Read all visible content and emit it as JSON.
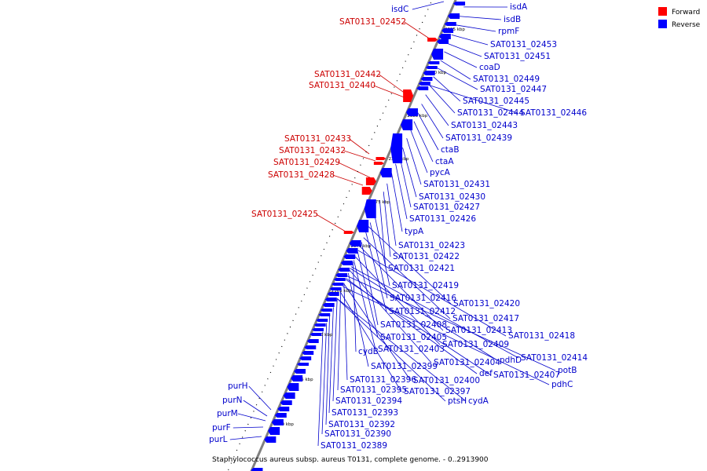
{
  "colors": {
    "forward": "#ff0000",
    "reverse": "#0000ff",
    "label_forward": "#cc0000",
    "label_reverse": "#0000cc",
    "backbone": "#808080",
    "line_forward": "#cc0000",
    "line_reverse": "#0000cc"
  },
  "legend": {
    "forward_label": "Forward",
    "reverse_label": "Reverse"
  },
  "caption": "Staphylococcus aureus subsp. aureus T0131, complete genome. - 0..2913900",
  "scale_labels": [
    "2395 kbp",
    "2390 kbp",
    "2385 kbp",
    "2380 kbp",
    "2375 kbp",
    "2370 kbp",
    "2365 kbp",
    "2360 kbp",
    "2355 kbp",
    "2350 kbp"
  ],
  "forward_labels": [
    "SAT0131_02452",
    "SAT0131_02442",
    "SAT0131_02440",
    "SAT0131_02433",
    "SAT0131_02432",
    "SAT0131_02429",
    "SAT0131_02428",
    "SAT0131_02425"
  ],
  "reverse_labels_right": [
    "isdA",
    "isdB",
    "rpmF",
    "SAT0131_02453",
    "SAT0131_02451",
    "coaD",
    "SAT0131_02449",
    "SAT0131_02447",
    "SAT0131_02445",
    "SAT0131_02444",
    "SAT0131_02446",
    "SAT0131_02443",
    "SAT0131_02439",
    "ctaB",
    "ctaA",
    "pycA",
    "SAT0131_02431",
    "SAT0131_02430",
    "SAT0131_02427",
    "SAT0131_02426",
    "typA",
    "SAT0131_02423",
    "SAT0131_02422",
    "SAT0131_02421",
    "SAT0131_02419",
    "SAT0131_02416",
    "SAT0131_02420",
    "SAT0131_02412",
    "SAT0131_02417",
    "SAT0131_02408",
    "SAT0131_02413",
    "SAT0131_02418",
    "SAT0131_02405",
    "SAT0131_02409",
    "cydB",
    "SAT0131_02403",
    "pdhD",
    "SAT0131_02414",
    "SAT0131_02404",
    "potB",
    "SAT0131_02399",
    "def",
    "SAT0131_02407",
    "SAT0131_02396",
    "SAT0131_02400",
    "pdhC",
    "SAT0131_02395",
    "SAT0131_02397",
    "SAT0131_02394",
    "ptsH",
    "cydA",
    "SAT0131_02393",
    "SAT0131_02392",
    "SAT0131_02390",
    "SAT0131_02389"
  ],
  "reverse_labels_left": [
    "isdC",
    "purH",
    "purN",
    "purM",
    "purF",
    "purL"
  ]
}
